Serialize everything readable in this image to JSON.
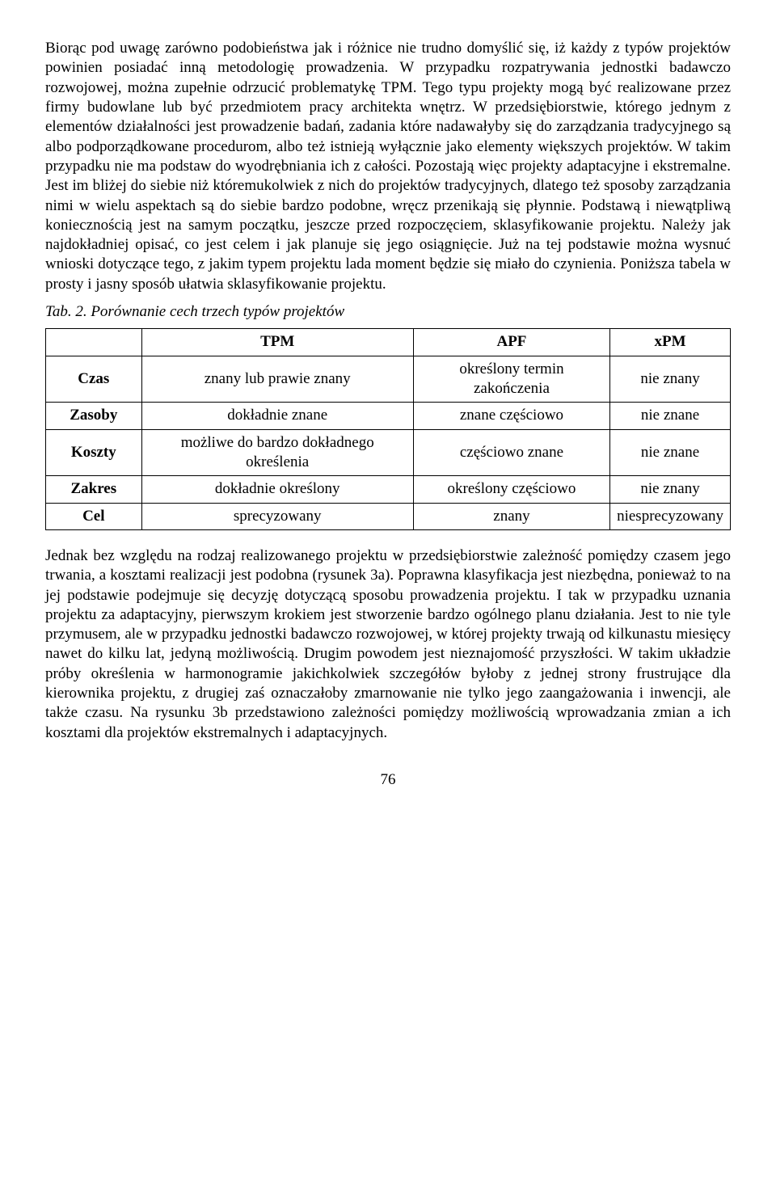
{
  "paragraph1": "Biorąc pod uwagę zarówno podobieństwa jak i różnice nie trudno domyślić się, iż każdy z typów projektów powinien posiadać inną metodologię prowadzenia. W przypadku rozpatrywania jednostki badawczo rozwojowej, można zupełnie odrzucić problematykę TPM. Tego typu projekty mogą być realizowane przez firmy budowlane lub być przedmiotem pracy architekta wnętrz. W przedsiębiorstwie, którego jednym z elementów działalności jest prowadzenie badań, zadania które nadawałyby się do zarządzania tradycyjnego są albo podporządkowane procedurom, albo też istnieją wyłącznie jako elementy większych projektów. W takim przypadku nie ma podstaw do wyodrębniania ich z całości. Pozostają więc projekty adaptacyjne i ekstremalne. Jest im bliżej do siebie niż któremukolwiek z nich do projektów tradycyjnych, dlatego też sposoby zarządzania nimi w wielu aspektach są do siebie bardzo podobne, wręcz przenikają się płynnie. Podstawą i niewątpliwą koniecznością jest na samym początku, jeszcze przed rozpoczęciem, sklasyfikowanie projektu. Należy jak najdokładniej opisać, co jest celem i jak planuje się jego osiągnięcie. Już na tej podstawie można wysnuć wnioski dotyczące tego, z jakim typem projektu lada moment będzie się miało do czynienia. Poniższa tabela w prosty i jasny sposób ułatwia sklasyfikowanie projektu.",
  "table_caption": "Tab. 2. Porównanie cech trzech typów projektów",
  "table": {
    "headers": [
      "",
      "TPM",
      "APF",
      "xPM"
    ],
    "rows": [
      {
        "label": "Czas",
        "tpm": "znany lub prawie znany",
        "apf": "określony termin zakończenia",
        "xpm": "nie znany"
      },
      {
        "label": "Zasoby",
        "tpm": "dokładnie znane",
        "apf": "znane częściowo",
        "xpm": "nie znane"
      },
      {
        "label": "Koszty",
        "tpm": "możliwe do bardzo dokładnego określenia",
        "apf": "częściowo znane",
        "xpm": "nie znane"
      },
      {
        "label": "Zakres",
        "tpm": "dokładnie określony",
        "apf": "określony częściowo",
        "xpm": "nie znany"
      },
      {
        "label": "Cel",
        "tpm": "sprecyzowany",
        "apf": "znany",
        "xpm": "niesprecyzowany"
      }
    ]
  },
  "paragraph2": "Jednak bez względu na rodzaj realizowanego projektu w przedsiębiorstwie zależność pomiędzy czasem jego trwania, a kosztami realizacji jest podobna (rysunek 3a). Poprawna klasyfikacja jest niezbędna, ponieważ to na jej podstawie podejmuje się decyzję dotyczącą sposobu prowadzenia projektu. I tak w przypadku uznania projektu za adaptacyjny, pierwszym krokiem jest stworzenie bardzo ogólnego planu działania. Jest to nie tyle przymusem, ale w przypadku jednostki badawczo rozwojowej, w której projekty trwają od kilkunastu miesięcy nawet do kilku lat, jedyną możliwością. Drugim powodem jest nieznajomość przyszłości. W takim układzie próby określenia w harmonogramie jakichkolwiek szczegółów byłoby z jednej strony frustrujące dla kierownika projektu, z drugiej zaś oznaczałoby zmarnowanie nie tylko jego zaangażowania i inwencji, ale także czasu. Na rysunku 3b przedstawiono zależności pomiędzy możliwością wprowadzania zmian a ich kosztami dla projektów ekstremalnych i adaptacyjnych.",
  "page_number": "76"
}
